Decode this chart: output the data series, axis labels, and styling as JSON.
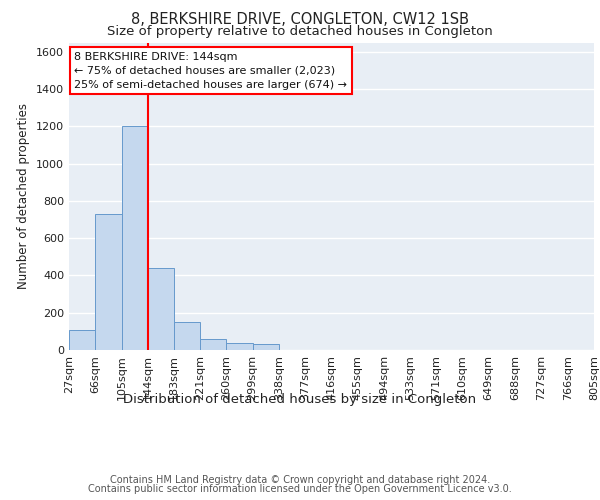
{
  "title1": "8, BERKSHIRE DRIVE, CONGLETON, CW12 1SB",
  "title2": "Size of property relative to detached houses in Congleton",
  "xlabel": "Distribution of detached houses by size in Congleton",
  "ylabel": "Number of detached properties",
  "footnote1": "Contains HM Land Registry data © Crown copyright and database right 2024.",
  "footnote2": "Contains public sector information licensed under the Open Government Licence v3.0.",
  "bin_edges": [
    27,
    66,
    105,
    144,
    183,
    221,
    260,
    299,
    338,
    377,
    416,
    455,
    494,
    533,
    571,
    610,
    649,
    688,
    727,
    766,
    805
  ],
  "bar_heights": [
    110,
    730,
    1200,
    440,
    150,
    60,
    35,
    30,
    0,
    0,
    0,
    0,
    0,
    0,
    0,
    0,
    0,
    0,
    0,
    0
  ],
  "bar_color": "#c5d8ee",
  "bar_edge_color": "#6699cc",
  "red_line_x": 144,
  "annotation_line1": "8 BERKSHIRE DRIVE: 144sqm",
  "annotation_line2": "← 75% of detached houses are smaller (2,023)",
  "annotation_line3": "25% of semi-detached houses are larger (674) →",
  "ylim": [
    0,
    1650
  ],
  "yticks": [
    0,
    200,
    400,
    600,
    800,
    1000,
    1200,
    1400,
    1600
  ],
  "background_color": "#e8eef5",
  "grid_color": "#ffffff",
  "title1_fontsize": 10.5,
  "title2_fontsize": 9.5,
  "xlabel_fontsize": 9.5,
  "ylabel_fontsize": 8.5,
  "tick_fontsize": 8,
  "footnote_fontsize": 7
}
